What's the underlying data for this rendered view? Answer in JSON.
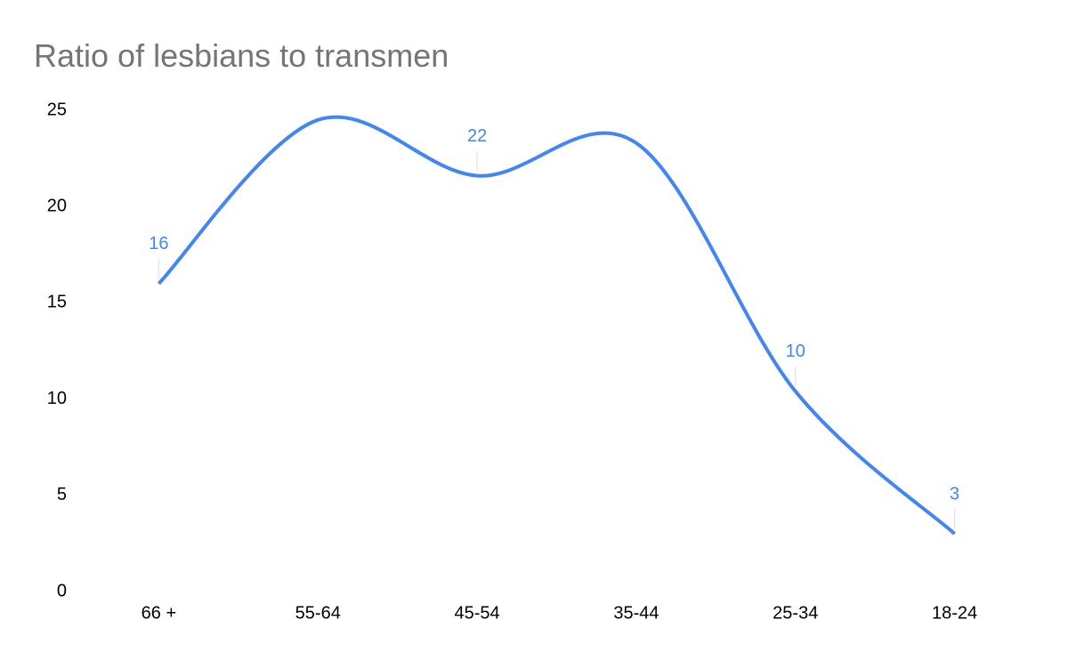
{
  "chart_data": {
    "type": "line",
    "title": "Ratio of lesbians to transmen",
    "categories": [
      "66 +",
      "55-64",
      "45-54",
      "35-44",
      "25-34",
      "18-24"
    ],
    "values": [
      16,
      24.5,
      21.6,
      23.3,
      10.4,
      3
    ],
    "value_labels": [
      "16",
      null,
      "22",
      null,
      "10",
      "3"
    ],
    "color": "#4285f4",
    "smooth": true,
    "ylim": [
      0,
      25
    ],
    "yticks": [
      0,
      5,
      10,
      15,
      20,
      25
    ],
    "grid": false
  }
}
